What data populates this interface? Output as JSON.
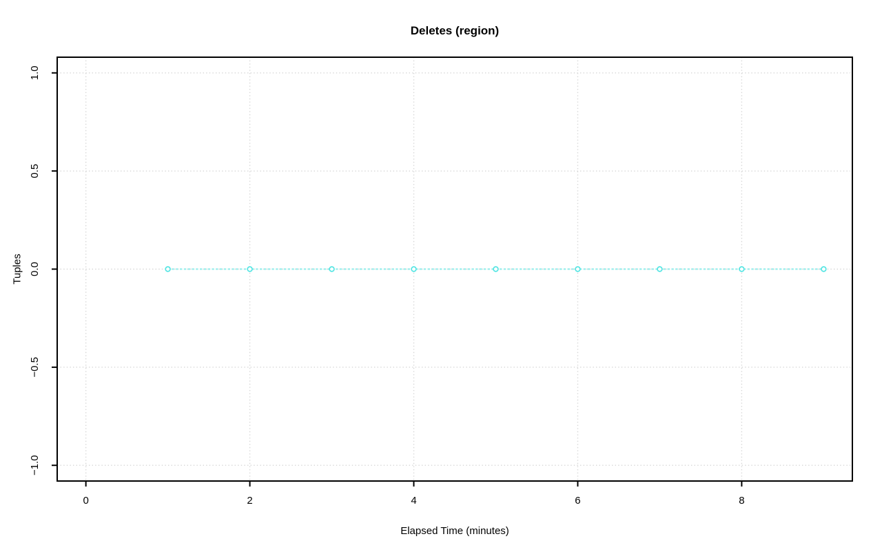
{
  "chart_data": {
    "type": "line",
    "title": "Deletes (region)",
    "xlabel": "Elapsed Time (minutes)",
    "ylabel": "Tuples",
    "x": [
      1,
      2,
      3,
      4,
      5,
      6,
      7,
      8,
      9
    ],
    "y": [
      0,
      0,
      0,
      0,
      0,
      0,
      0,
      0,
      0
    ],
    "xlim": [
      -0.35,
      9.35
    ],
    "ylim": [
      -1.08,
      1.08
    ],
    "xticks": [
      0,
      2,
      4,
      6,
      8
    ],
    "xtick_labels": [
      "0",
      "2",
      "4",
      "6",
      "8"
    ],
    "yticks": [
      -1.0,
      -0.5,
      0.0,
      0.5,
      1.0
    ],
    "ytick_labels": [
      "−1.0",
      "−0.5",
      "0.0",
      "0.5",
      "1.0"
    ],
    "grid": "dotted",
    "legend": "none",
    "colors": {
      "series_line": "#9beeec",
      "series_marker": "#55e5e3",
      "marker_fill": "#ffffff",
      "grid": "#d6d6d6",
      "axis": "#000000",
      "text": "#000000",
      "background": "#ffffff"
    },
    "marker": "open-circle",
    "line_style": "dashed"
  }
}
